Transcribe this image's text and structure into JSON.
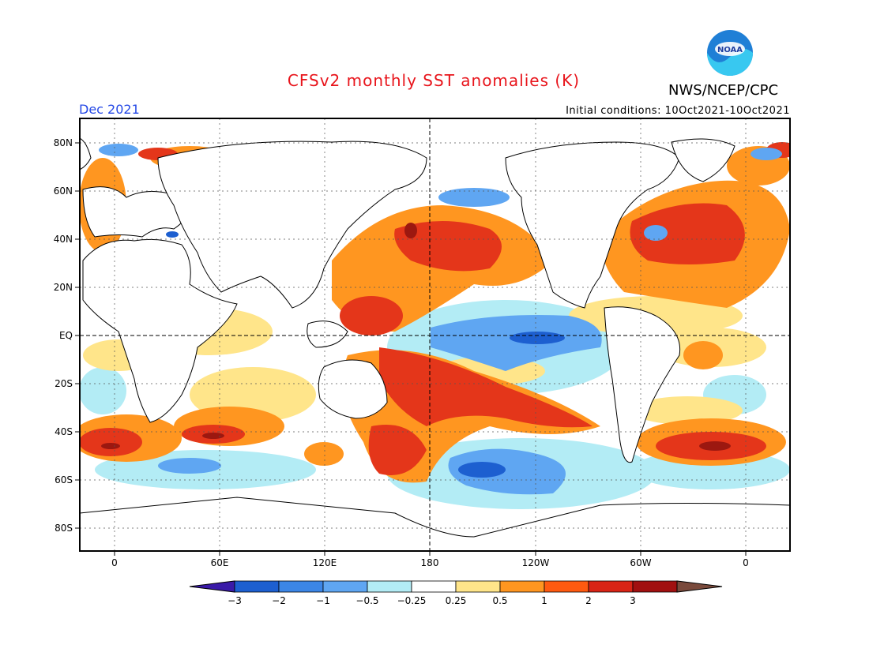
{
  "title": "CFSv2 monthly SST anomalies (K)",
  "agency": "NWS/NCEP/CPC",
  "logo_text": "NOAA",
  "valid_month": "Dec 2021",
  "initial_conditions": "Initial conditions: 10Oct2021-10Oct2021",
  "lat_labels": [
    "80N",
    "60N",
    "40N",
    "20N",
    "EQ",
    "20S",
    "40S",
    "60S",
    "80S"
  ],
  "lon_labels": [
    "0",
    "60E",
    "120E",
    "180",
    "120W",
    "60W",
    "0"
  ],
  "colorbar": {
    "labels": [
      "-3",
      "-2",
      "-1",
      "-0.5",
      "-0.25",
      "0.25",
      "0.5",
      "1",
      "2",
      "3"
    ],
    "colors": [
      "#3a1aa8",
      "#1d5fd0",
      "#3c86e6",
      "#5fa6f2",
      "#b3ecf5",
      "#ffffff",
      "#ffe58a",
      "#ff9620",
      "#ff5a10",
      "#d92416",
      "#a11010",
      "#7a4a3c"
    ]
  }
}
